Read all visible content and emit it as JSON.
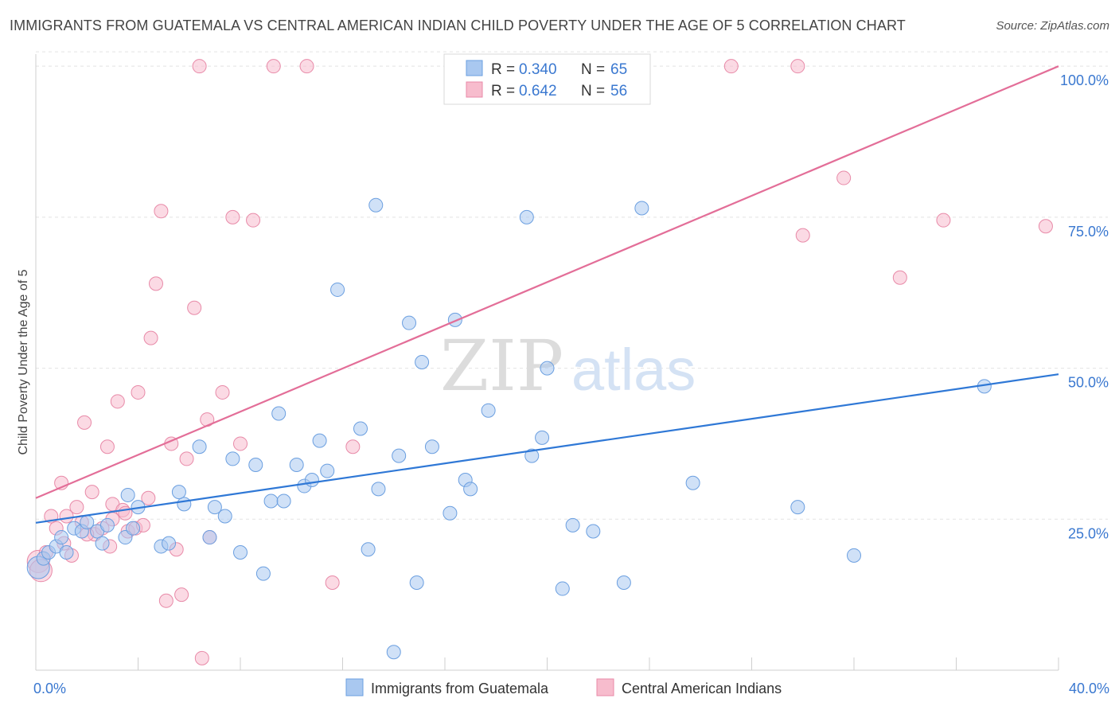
{
  "title": "IMMIGRANTS FROM GUATEMALA VS CENTRAL AMERICAN INDIAN CHILD POVERTY UNDER THE AGE OF 5 CORRELATION CHART",
  "source": "Source: ZipAtlas.com",
  "watermark": {
    "zip": "ZIP",
    "atlas": "atlas"
  },
  "colors": {
    "blue_fill": "#a9c8f0",
    "blue_stroke": "#6b9fe0",
    "blue_line": "#2f78d6",
    "pink_fill": "#f7bccd",
    "pink_stroke": "#e88aa8",
    "pink_line": "#e36e98",
    "value_text": "#3a78d0"
  },
  "legend": {
    "rows": [
      {
        "r_label": "R = ",
        "r_value": "0.340",
        "n_label": "N = ",
        "n_value": "65",
        "series": "blue"
      },
      {
        "r_label": "R = ",
        "r_value": "0.642",
        "n_label": "N = ",
        "n_value": "56",
        "series": "pink"
      }
    ]
  },
  "chart_data": {
    "type": "scatter",
    "title": "IMMIGRANTS FROM GUATEMALA VS CENTRAL AMERICAN INDIAN CHILD POVERTY UNDER THE AGE OF 5 CORRELATION CHART",
    "xlabel": "",
    "ylabel": "Child Poverty Under the Age of 5",
    "xlim": [
      0,
      40
    ],
    "ylim": [
      0,
      102
    ],
    "x_tick_labels": [
      {
        "value": 0,
        "label": "0.0%"
      },
      {
        "value": 40,
        "label": "40.0%"
      }
    ],
    "y_tick_labels": [
      {
        "value": 25,
        "label": "25.0%"
      },
      {
        "value": 50,
        "label": "50.0%"
      },
      {
        "value": 75,
        "label": "75.0%"
      },
      {
        "value": 100,
        "label": "100.0%"
      }
    ],
    "grid": "horizontal dashed",
    "legend_position": "top-center",
    "series": [
      {
        "name": "Immigrants from Guatemala",
        "color": "blue",
        "trend": {
          "x": [
            0,
            40
          ],
          "y": [
            24.4,
            49.0
          ]
        },
        "points": [
          [
            0.1,
            17.0
          ],
          [
            0.3,
            18.5
          ],
          [
            0.5,
            19.5
          ],
          [
            0.8,
            20.5
          ],
          [
            1.0,
            22.0
          ],
          [
            1.2,
            19.5
          ],
          [
            1.5,
            23.5
          ],
          [
            1.8,
            23.0
          ],
          [
            2.0,
            24.5
          ],
          [
            2.4,
            23.0
          ],
          [
            2.6,
            21.0
          ],
          [
            3.5,
            22.0
          ],
          [
            2.8,
            24.0
          ],
          [
            3.8,
            23.5
          ],
          [
            4.0,
            27.0
          ],
          [
            3.6,
            29.0
          ],
          [
            4.9,
            20.5
          ],
          [
            5.2,
            21.0
          ],
          [
            5.8,
            27.5
          ],
          [
            5.6,
            29.5
          ],
          [
            6.4,
            37.0
          ],
          [
            6.8,
            22.0
          ],
          [
            7.0,
            27.0
          ],
          [
            7.4,
            25.5
          ],
          [
            7.7,
            35.0
          ],
          [
            8.0,
            19.5
          ],
          [
            8.6,
            34.0
          ],
          [
            8.9,
            16.0
          ],
          [
            9.2,
            28.0
          ],
          [
            9.5,
            42.5
          ],
          [
            9.7,
            28.0
          ],
          [
            10.2,
            34.0
          ],
          [
            10.5,
            30.5
          ],
          [
            10.8,
            31.5
          ],
          [
            11.1,
            38.0
          ],
          [
            11.4,
            33.0
          ],
          [
            11.8,
            63.0
          ],
          [
            12.7,
            40.0
          ],
          [
            13.3,
            77.0
          ],
          [
            13.4,
            30.0
          ],
          [
            14.2,
            35.5
          ],
          [
            14.0,
            3.0
          ],
          [
            14.6,
            57.5
          ],
          [
            14.9,
            14.5
          ],
          [
            15.1,
            51.0
          ],
          [
            15.5,
            37.0
          ],
          [
            16.2,
            26.0
          ],
          [
            16.4,
            58.0
          ],
          [
            16.8,
            31.5
          ],
          [
            17.0,
            30.0
          ],
          [
            17.7,
            43.0
          ],
          [
            19.2,
            75.0
          ],
          [
            19.4,
            35.5
          ],
          [
            19.8,
            38.5
          ],
          [
            20.0,
            50.0
          ],
          [
            20.6,
            13.5
          ],
          [
            21.0,
            24.0
          ],
          [
            21.8,
            23.0
          ],
          [
            23.0,
            14.5
          ],
          [
            23.7,
            76.5
          ],
          [
            25.7,
            31.0
          ],
          [
            29.8,
            27.0
          ],
          [
            32.0,
            19.0
          ],
          [
            37.1,
            47.0
          ],
          [
            13.0,
            20.0
          ]
        ]
      },
      {
        "name": "Central American Indians",
        "color": "pink",
        "trend": {
          "x": [
            0,
            40
          ],
          "y": [
            28.5,
            100.0
          ]
        },
        "points": [
          [
            0.1,
            18.0
          ],
          [
            0.4,
            19.5
          ],
          [
            0.6,
            25.5
          ],
          [
            0.8,
            23.5
          ],
          [
            1.0,
            31.0
          ],
          [
            1.2,
            25.5
          ],
          [
            1.4,
            19.0
          ],
          [
            1.6,
            27.0
          ],
          [
            1.8,
            24.5
          ],
          [
            1.9,
            41.0
          ],
          [
            2.2,
            29.5
          ],
          [
            2.3,
            22.5
          ],
          [
            2.6,
            23.5
          ],
          [
            2.8,
            37.0
          ],
          [
            2.9,
            20.5
          ],
          [
            3.0,
            27.5
          ],
          [
            3.2,
            44.5
          ],
          [
            3.4,
            26.5
          ],
          [
            3.5,
            26.0
          ],
          [
            3.6,
            23.0
          ],
          [
            3.9,
            23.5
          ],
          [
            4.0,
            46.0
          ],
          [
            4.4,
            28.5
          ],
          [
            4.5,
            55.0
          ],
          [
            4.7,
            64.0
          ],
          [
            4.9,
            76.0
          ],
          [
            5.1,
            11.5
          ],
          [
            5.3,
            37.5
          ],
          [
            5.5,
            20.0
          ],
          [
            5.7,
            12.5
          ],
          [
            5.9,
            35.0
          ],
          [
            6.2,
            60.0
          ],
          [
            6.4,
            100.0
          ],
          [
            6.5,
            2.0
          ],
          [
            6.7,
            41.5
          ],
          [
            6.8,
            22.0
          ],
          [
            7.3,
            46.0
          ],
          [
            7.7,
            75.0
          ],
          [
            8.0,
            37.5
          ],
          [
            8.5,
            74.5
          ],
          [
            9.3,
            100.0
          ],
          [
            10.6,
            100.0
          ],
          [
            11.6,
            14.5
          ],
          [
            12.4,
            37.0
          ],
          [
            27.2,
            100.0
          ],
          [
            29.8,
            100.0
          ],
          [
            30.0,
            72.0
          ],
          [
            31.6,
            81.5
          ],
          [
            33.8,
            65.0
          ],
          [
            35.5,
            74.5
          ],
          [
            39.5,
            73.5
          ],
          [
            0.2,
            16.5
          ],
          [
            1.1,
            21.0
          ],
          [
            2.0,
            22.5
          ],
          [
            3.0,
            25.0
          ],
          [
            4.2,
            24.0
          ]
        ]
      }
    ]
  }
}
